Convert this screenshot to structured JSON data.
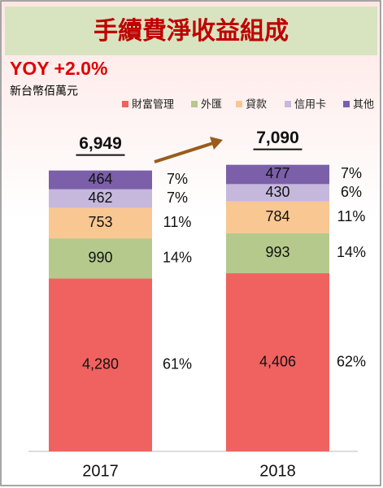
{
  "chart_data": {
    "type": "stacked-bar",
    "title": "手續費淨收益組成",
    "annotation": "YOY +2.0%",
    "unit": "新台幣佰萬元",
    "categories": [
      "2017",
      "2018"
    ],
    "totals": [
      6949,
      7090
    ],
    "total_labels": [
      "6,949",
      "7,090"
    ],
    "series": [
      {
        "name": "財富管理",
        "color": "#f0625f",
        "values": [
          4280,
          4406
        ],
        "value_labels": [
          "4,280",
          "4,406"
        ],
        "shares": [
          61,
          62
        ],
        "share_labels": [
          "61%",
          "62%"
        ]
      },
      {
        "name": "外匯",
        "color": "#b5c98c",
        "values": [
          990,
          993
        ],
        "value_labels": [
          "990",
          "993"
        ],
        "shares": [
          14,
          14
        ],
        "share_labels": [
          "14%",
          "14%"
        ]
      },
      {
        "name": "貸款",
        "color": "#f9c792",
        "values": [
          753,
          784
        ],
        "value_labels": [
          "753",
          "784"
        ],
        "shares": [
          11,
          11
        ],
        "share_labels": [
          "11%",
          "11%"
        ]
      },
      {
        "name": "信用卡",
        "color": "#c6b8dd",
        "values": [
          462,
          430
        ],
        "value_labels": [
          "462",
          "430"
        ],
        "shares": [
          7,
          6
        ],
        "share_labels": [
          "7%",
          "6%"
        ]
      },
      {
        "name": "其他",
        "color": "#7b5fa8",
        "values": [
          464,
          477
        ],
        "value_labels": [
          "464",
          "477"
        ],
        "shares": [
          7,
          7
        ],
        "share_labels": [
          "7%",
          "7%"
        ]
      }
    ]
  }
}
